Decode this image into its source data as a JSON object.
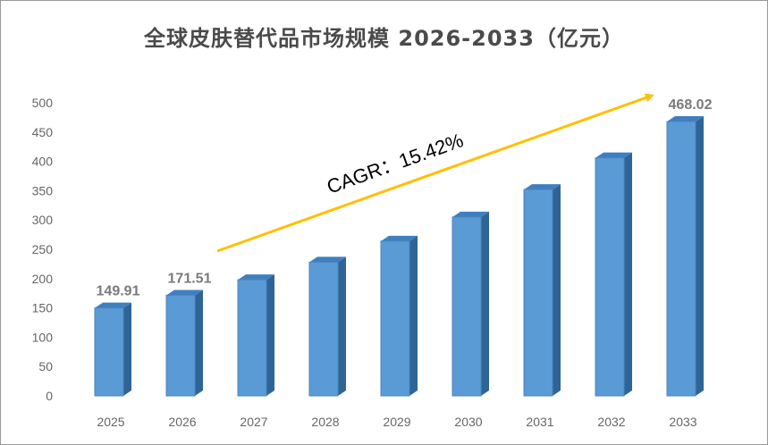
{
  "chart_data": {
    "type": "bar",
    "title": "全球皮肤替代品市场规模 2026-2033（亿元）",
    "categories": [
      "2025",
      "2026",
      "2027",
      "2028",
      "2029",
      "2030",
      "2031",
      "2032",
      "2033"
    ],
    "values": [
      149.91,
      171.51,
      198,
      228,
      264,
      305,
      352,
      406,
      468.02
    ],
    "data_labels": {
      "0": "149.91",
      "1": "171.51",
      "8": "468.02"
    },
    "ylim": [
      0,
      500
    ],
    "yticks": [
      0,
      50,
      100,
      150,
      200,
      250,
      300,
      350,
      400,
      450,
      500
    ],
    "annotation": "CAGR：15.42%",
    "colors": {
      "bar_front": "#5b9bd5",
      "bar_side": "#2e6596",
      "bar_top": "#3f7fbf",
      "arrow": "#ffc000"
    },
    "grid": false,
    "legend": "none"
  }
}
